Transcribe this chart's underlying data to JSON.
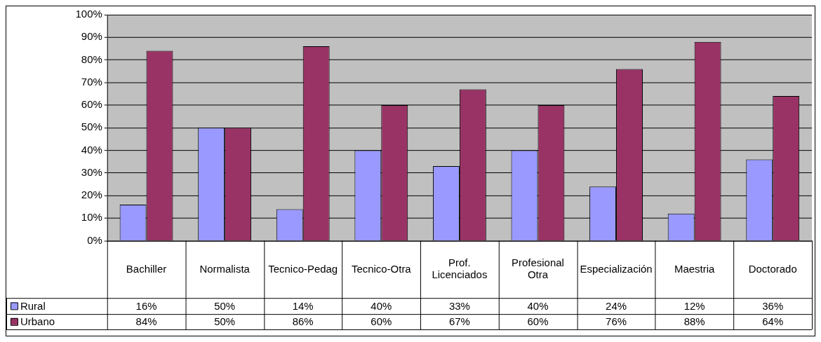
{
  "chart_data": {
    "type": "bar",
    "categories": [
      "Bachiller",
      "Normalista",
      "Tecnico-Pedag",
      "Tecnico-Otra",
      "Prof. Licenciados",
      "Profesional Otra",
      "Especialización",
      "Maestria",
      "Doctorado"
    ],
    "series": [
      {
        "name": "Rural",
        "color": "#9999ff",
        "values": [
          16,
          50,
          14,
          40,
          33,
          40,
          24,
          12,
          36
        ],
        "value_labels": [
          "16%",
          "50%",
          "14%",
          "40%",
          "33%",
          "40%",
          "24%",
          "12%",
          "36%"
        ]
      },
      {
        "name": "Urbano",
        "color": "#993366",
        "values": [
          84,
          50,
          86,
          60,
          67,
          60,
          76,
          88,
          64
        ],
        "value_labels": [
          "84%",
          "50%",
          "86%",
          "60%",
          "67%",
          "60%",
          "76%",
          "88%",
          "64%"
        ]
      }
    ],
    "ylim": [
      0,
      100
    ],
    "yticks": [
      {
        "value": 0,
        "label": "0%"
      },
      {
        "value": 10,
        "label": "10%"
      },
      {
        "value": 20,
        "label": "20%"
      },
      {
        "value": 30,
        "label": "30%"
      },
      {
        "value": 40,
        "label": "40%"
      },
      {
        "value": 50,
        "label": "50%"
      },
      {
        "value": 60,
        "label": "60%"
      },
      {
        "value": 70,
        "label": "70%"
      },
      {
        "value": 80,
        "label": "80%"
      },
      {
        "value": 90,
        "label": "90%"
      },
      {
        "value": 100,
        "label": "100%"
      }
    ],
    "grid": "y",
    "legend": "bottom left"
  }
}
